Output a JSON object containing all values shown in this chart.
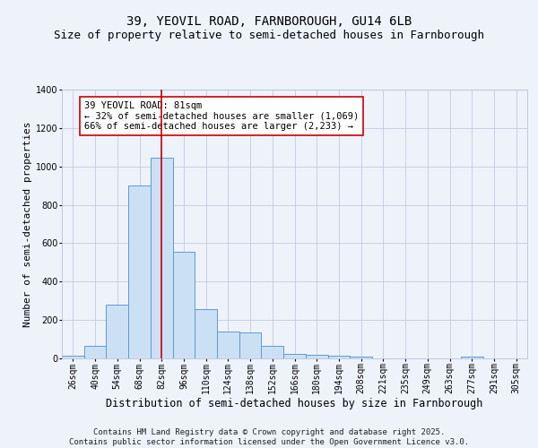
{
  "title1": "39, YEOVIL ROAD, FARNBOROUGH, GU14 6LB",
  "title2": "Size of property relative to semi-detached houses in Farnborough",
  "xlabel": "Distribution of semi-detached houses by size in Farnborough",
  "ylabel": "Number of semi-detached properties",
  "categories": [
    "26sqm",
    "40sqm",
    "54sqm",
    "68sqm",
    "82sqm",
    "96sqm",
    "110sqm",
    "124sqm",
    "138sqm",
    "152sqm",
    "166sqm",
    "180sqm",
    "194sqm",
    "208sqm",
    "221sqm",
    "235sqm",
    "249sqm",
    "263sqm",
    "277sqm",
    "291sqm",
    "305sqm"
  ],
  "values": [
    15,
    65,
    280,
    900,
    1045,
    555,
    255,
    140,
    135,
    65,
    25,
    20,
    12,
    10,
    0,
    0,
    0,
    0,
    10,
    0,
    0
  ],
  "bar_color": "#cce0f5",
  "bar_edge_color": "#5b9bd5",
  "vline_x": 4,
  "vline_color": "#cc0000",
  "annotation_text": "39 YEOVIL ROAD: 81sqm\n← 32% of semi-detached houses are smaller (1,069)\n66% of semi-detached houses are larger (2,233) →",
  "annotation_box_color": "#ffffff",
  "annotation_box_edge": "#cc0000",
  "footer1": "Contains HM Land Registry data © Crown copyright and database right 2025.",
  "footer2": "Contains public sector information licensed under the Open Government Licence v3.0.",
  "bg_color": "#eef2fb",
  "ylim": [
    0,
    1400
  ],
  "title1_fontsize": 10,
  "title2_fontsize": 9,
  "xlabel_fontsize": 8.5,
  "ylabel_fontsize": 8,
  "tick_fontsize": 7,
  "annotation_fontsize": 7.5,
  "footer_fontsize": 6.5
}
